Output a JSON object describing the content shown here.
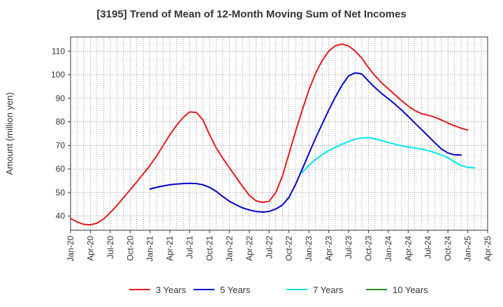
{
  "chart_data": {
    "type": "line",
    "title": "[3195]  Trend of Mean of 12-Month Moving Sum of Net Incomes",
    "xlabel": "",
    "ylabel": "Amount (million yen)",
    "ylim": [
      34,
      116
    ],
    "yticks": [
      40,
      50,
      60,
      70,
      80,
      90,
      100,
      110
    ],
    "xticks": [
      "Jan-20",
      "Apr-20",
      "Jul-20",
      "Oct-20",
      "Jan-21",
      "Apr-21",
      "Jul-21",
      "Oct-21",
      "Jan-22",
      "Apr-22",
      "Jul-22",
      "Oct-22",
      "Jan-23",
      "Apr-23",
      "Jul-23",
      "Oct-23",
      "Jan-24",
      "Apr-24",
      "Jul-24",
      "Oct-24",
      "Jan-25",
      "Apr-25"
    ],
    "grid": true,
    "legend_position": "bottom",
    "series": [
      {
        "name": "3 Years",
        "color": "#e31a1c",
        "start": "Jan-20",
        "values": [
          39.0,
          37.5,
          36.5,
          36.3,
          37.0,
          38.8,
          41.5,
          44.5,
          47.8,
          51.2,
          54.5,
          58.0,
          61.5,
          65.5,
          70.0,
          74.5,
          78.5,
          81.8,
          84.2,
          84.0,
          80.8,
          74.5,
          69.0,
          64.5,
          60.5,
          56.5,
          52.5,
          48.8,
          46.5,
          45.8,
          46.3,
          50.0,
          57.0,
          66.5,
          76.0,
          85.0,
          93.5,
          100.5,
          106.0,
          110.0,
          112.3,
          113.0,
          112.2,
          110.0,
          107.0,
          103.0,
          99.5,
          96.5,
          94.0,
          91.5,
          89.0,
          86.7,
          84.8,
          83.5,
          82.8,
          82.0,
          80.8,
          79.5,
          78.3,
          77.3,
          76.5
        ]
      },
      {
        "name": "5 Years",
        "color": "#0000cc",
        "start": "Jan-21",
        "values": [
          51.5,
          52.2,
          52.8,
          53.3,
          53.6,
          53.8,
          53.9,
          53.8,
          53.3,
          52.2,
          50.5,
          48.3,
          46.3,
          44.8,
          43.5,
          42.6,
          42.0,
          41.7,
          42.0,
          43.0,
          44.7,
          48.0,
          53.5,
          60.0,
          66.5,
          73.0,
          79.0,
          85.0,
          90.5,
          95.5,
          99.5,
          100.8,
          100.3,
          97.3,
          94.5,
          92.0,
          89.8,
          87.5,
          85.0,
          82.3,
          79.5,
          76.8,
          74.0,
          71.2,
          68.5,
          66.8,
          66.0,
          65.9
        ]
      },
      {
        "name": "7 Years",
        "color": "#00e5ee",
        "start": "Dec-22",
        "values": [
          58.5,
          61.5,
          64.0,
          66.0,
          67.8,
          69.2,
          70.5,
          71.6,
          72.6,
          73.2,
          73.3,
          72.8,
          72.0,
          71.2,
          70.5,
          69.8,
          69.3,
          68.9,
          68.5,
          67.8,
          67.0,
          66.0,
          64.7,
          63.0,
          61.5,
          60.7,
          60.5
        ]
      },
      {
        "name": "10 Years",
        "color": "#228b22",
        "start": "Jan-20",
        "values": []
      }
    ]
  }
}
